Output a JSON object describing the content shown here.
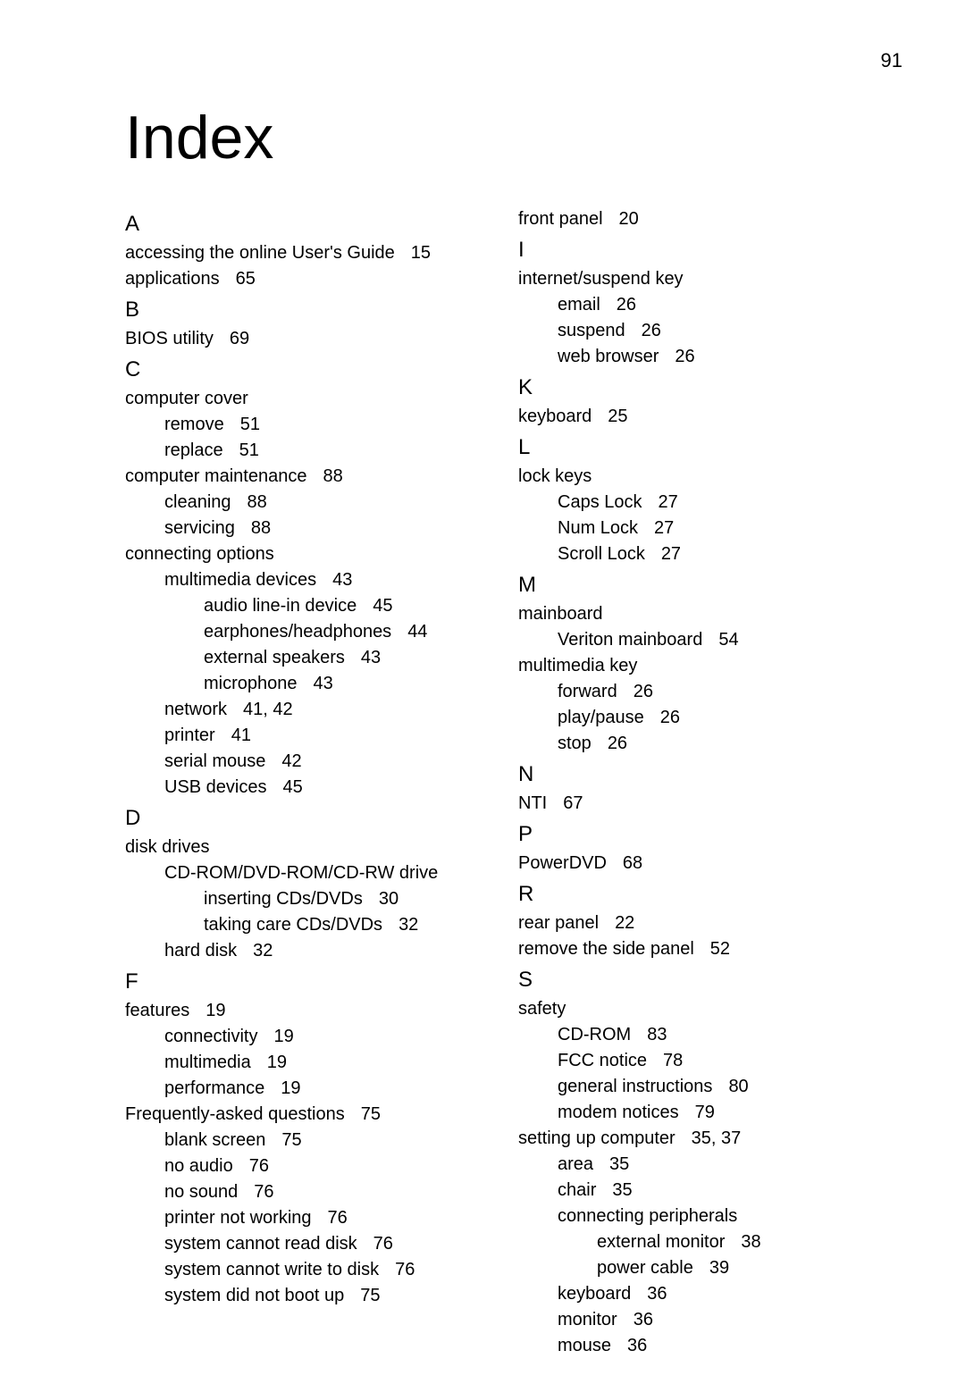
{
  "page_number": "91",
  "title": "Index",
  "typography": {
    "title_fontsize_pt": 51,
    "letter_fontsize_pt": 18,
    "entry_fontsize_pt": 15,
    "font_family": "sans-serif"
  },
  "colors": {
    "background": "#ffffff",
    "text": "#000000"
  },
  "left_column": [
    {
      "type": "letter",
      "text": "A"
    },
    {
      "type": "entry",
      "level": 0,
      "text": "accessing the online User's Guide",
      "page": "15"
    },
    {
      "type": "entry",
      "level": 0,
      "text": "applications",
      "page": "65"
    },
    {
      "type": "letter",
      "text": "B"
    },
    {
      "type": "entry",
      "level": 0,
      "text": "BIOS utility",
      "page": "69"
    },
    {
      "type": "letter",
      "text": "C"
    },
    {
      "type": "entry",
      "level": 0,
      "text": "computer cover",
      "page": ""
    },
    {
      "type": "entry",
      "level": 1,
      "text": "remove",
      "page": "51"
    },
    {
      "type": "entry",
      "level": 1,
      "text": "replace",
      "page": "51"
    },
    {
      "type": "entry",
      "level": 0,
      "text": "computer maintenance",
      "page": "88"
    },
    {
      "type": "entry",
      "level": 1,
      "text": "cleaning",
      "page": "88"
    },
    {
      "type": "entry",
      "level": 1,
      "text": "servicing",
      "page": "88"
    },
    {
      "type": "entry",
      "level": 0,
      "text": "connecting options",
      "page": ""
    },
    {
      "type": "entry",
      "level": 1,
      "text": "multimedia devices",
      "page": "43"
    },
    {
      "type": "entry",
      "level": 2,
      "text": "audio line-in device",
      "page": "45"
    },
    {
      "type": "entry",
      "level": 2,
      "text": "earphones/headphones",
      "page": "44"
    },
    {
      "type": "entry",
      "level": 2,
      "text": "external speakers",
      "page": "43"
    },
    {
      "type": "entry",
      "level": 2,
      "text": "microphone",
      "page": "43"
    },
    {
      "type": "entry",
      "level": 1,
      "text": "network",
      "page": "41,   42"
    },
    {
      "type": "entry",
      "level": 1,
      "text": "printer",
      "page": "41"
    },
    {
      "type": "entry",
      "level": 1,
      "text": "serial mouse",
      "page": "42"
    },
    {
      "type": "entry",
      "level": 1,
      "text": "USB devices",
      "page": "45"
    },
    {
      "type": "letter",
      "text": "D"
    },
    {
      "type": "entry",
      "level": 0,
      "text": "disk drives",
      "page": ""
    },
    {
      "type": "entry",
      "level": 1,
      "text": "CD-ROM/DVD-ROM/CD-RW drive",
      "page": ""
    },
    {
      "type": "entry",
      "level": 2,
      "text": "inserting CDs/DVDs",
      "page": "30"
    },
    {
      "type": "entry",
      "level": 2,
      "text": "taking care CDs/DVDs",
      "page": "32"
    },
    {
      "type": "entry",
      "level": 1,
      "text": "hard disk",
      "page": "32"
    },
    {
      "type": "letter",
      "text": "F"
    },
    {
      "type": "entry",
      "level": 0,
      "text": "features",
      "page": "19"
    },
    {
      "type": "entry",
      "level": 1,
      "text": "connectivity",
      "page": "19"
    },
    {
      "type": "entry",
      "level": 1,
      "text": "multimedia",
      "page": "19"
    },
    {
      "type": "entry",
      "level": 1,
      "text": "performance",
      "page": "19"
    },
    {
      "type": "entry",
      "level": 0,
      "text": "Frequently-asked questions",
      "page": "75"
    },
    {
      "type": "entry",
      "level": 1,
      "text": "blank screen",
      "page": "75"
    },
    {
      "type": "entry",
      "level": 1,
      "text": "no audio",
      "page": "76"
    },
    {
      "type": "entry",
      "level": 1,
      "text": "no sound",
      "page": "76"
    },
    {
      "type": "entry",
      "level": 1,
      "text": "printer not working",
      "page": "76"
    },
    {
      "type": "entry",
      "level": 1,
      "text": "system cannot read disk",
      "page": "76"
    },
    {
      "type": "entry",
      "level": 1,
      "text": "system cannot write to disk",
      "page": "76"
    },
    {
      "type": "entry",
      "level": 1,
      "text": "system did not boot up",
      "page": "75"
    }
  ],
  "right_column": [
    {
      "type": "entry",
      "level": 0,
      "text": "front panel",
      "page": "20"
    },
    {
      "type": "letter",
      "text": "I"
    },
    {
      "type": "entry",
      "level": 0,
      "text": "internet/suspend key",
      "page": ""
    },
    {
      "type": "entry",
      "level": 1,
      "text": "email",
      "page": "26"
    },
    {
      "type": "entry",
      "level": 1,
      "text": "suspend",
      "page": "26"
    },
    {
      "type": "entry",
      "level": 1,
      "text": "web browser",
      "page": "26"
    },
    {
      "type": "letter",
      "text": "K"
    },
    {
      "type": "entry",
      "level": 0,
      "text": "keyboard",
      "page": "25"
    },
    {
      "type": "letter",
      "text": "L"
    },
    {
      "type": "entry",
      "level": 0,
      "text": "lock keys",
      "page": ""
    },
    {
      "type": "entry",
      "level": 1,
      "text": "Caps Lock",
      "page": "27"
    },
    {
      "type": "entry",
      "level": 1,
      "text": "Num Lock",
      "page": "27"
    },
    {
      "type": "entry",
      "level": 1,
      "text": "Scroll Lock",
      "page": "27"
    },
    {
      "type": "letter",
      "text": "M"
    },
    {
      "type": "entry",
      "level": 0,
      "text": "mainboard",
      "page": ""
    },
    {
      "type": "entry",
      "level": 1,
      "text": "Veriton mainboard",
      "page": "54"
    },
    {
      "type": "entry",
      "level": 0,
      "text": "multimedia key",
      "page": ""
    },
    {
      "type": "entry",
      "level": 1,
      "text": "forward",
      "page": "26"
    },
    {
      "type": "entry",
      "level": 1,
      "text": "play/pause",
      "page": "26"
    },
    {
      "type": "entry",
      "level": 1,
      "text": "stop",
      "page": "26"
    },
    {
      "type": "letter",
      "text": "N"
    },
    {
      "type": "entry",
      "level": 0,
      "text": "NTI",
      "page": "67"
    },
    {
      "type": "letter",
      "text": "P"
    },
    {
      "type": "entry",
      "level": 0,
      "text": "PowerDVD",
      "page": "68"
    },
    {
      "type": "letter",
      "text": "R"
    },
    {
      "type": "entry",
      "level": 0,
      "text": "rear panel",
      "page": "22"
    },
    {
      "type": "entry",
      "level": 0,
      "text": "remove the side panel",
      "page": "52"
    },
    {
      "type": "letter",
      "text": "S"
    },
    {
      "type": "entry",
      "level": 0,
      "text": "safety",
      "page": ""
    },
    {
      "type": "entry",
      "level": 1,
      "text": "CD-ROM",
      "page": "83"
    },
    {
      "type": "entry",
      "level": 1,
      "text": "FCC notice",
      "page": "78"
    },
    {
      "type": "entry",
      "level": 1,
      "text": "general instructions",
      "page": "80"
    },
    {
      "type": "entry",
      "level": 1,
      "text": "modem notices",
      "page": "79"
    },
    {
      "type": "entry",
      "level": 0,
      "text": "setting up computer",
      "page": "35,   37"
    },
    {
      "type": "entry",
      "level": 1,
      "text": "area",
      "page": "35"
    },
    {
      "type": "entry",
      "level": 1,
      "text": "chair",
      "page": "35"
    },
    {
      "type": "entry",
      "level": 1,
      "text": "connecting peripherals",
      "page": ""
    },
    {
      "type": "entry",
      "level": 2,
      "text": "external monitor",
      "page": "38"
    },
    {
      "type": "entry",
      "level": 2,
      "text": "power cable",
      "page": "39"
    },
    {
      "type": "entry",
      "level": 1,
      "text": "keyboard",
      "page": "36"
    },
    {
      "type": "entry",
      "level": 1,
      "text": "monitor",
      "page": "36"
    },
    {
      "type": "entry",
      "level": 1,
      "text": "mouse",
      "page": "36"
    }
  ]
}
